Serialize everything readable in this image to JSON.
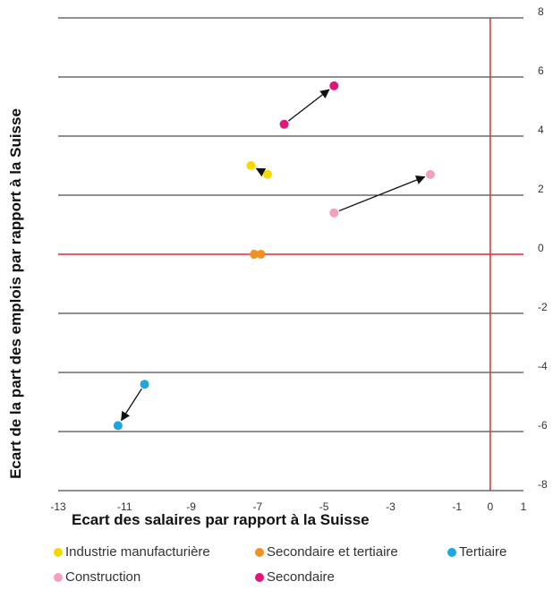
{
  "chart_data": {
    "type": "scatter",
    "xlabel": "Ecart des salaires par rapport à la Suisse",
    "ylabel": "Ecart de la part des emplois par rapport à la Suisse",
    "xlim": [
      -13,
      1
    ],
    "ylim": [
      -8,
      8
    ],
    "x_ticks": [
      "-13",
      "-11",
      "-9",
      "-7",
      "-5",
      "-3",
      "-1",
      "0",
      "1"
    ],
    "x_tick_values": [
      -13,
      -11,
      -9,
      -7,
      -5,
      -3,
      -1,
      0,
      1
    ],
    "y_ticks": [
      "8",
      "6",
      "4",
      "2",
      "0",
      "-2",
      "-4",
      "-6",
      "-8"
    ],
    "y_tick_values": [
      8,
      6,
      4,
      2,
      0,
      -2,
      -4,
      -6,
      -8
    ],
    "grid": "horizontal",
    "reference_lines": {
      "x": 0,
      "y": 0,
      "color": "#e32a2a"
    },
    "series": [
      {
        "name": "Industrie manufacturière",
        "color": "#f7d800",
        "from": [
          -6.7,
          2.7
        ],
        "to": [
          -7.2,
          3.0
        ]
      },
      {
        "name": "Secondaire et tertiaire",
        "color": "#f39223",
        "from": [
          -6.9,
          0.0
        ],
        "to": [
          -7.1,
          0.0
        ]
      },
      {
        "name": "Tertiaire",
        "color": "#1ba7df",
        "from": [
          -10.4,
          -4.4
        ],
        "to": [
          -11.2,
          -5.8
        ]
      },
      {
        "name": "Construction",
        "color": "#f49fbe",
        "from": [
          -4.7,
          1.4
        ],
        "to": [
          -1.8,
          2.7
        ]
      },
      {
        "name": "Secondaire",
        "color": "#e4147d",
        "from": [
          -6.2,
          4.4
        ],
        "to": [
          -4.7,
          5.7
        ]
      }
    ],
    "legend_position": "bottom"
  }
}
